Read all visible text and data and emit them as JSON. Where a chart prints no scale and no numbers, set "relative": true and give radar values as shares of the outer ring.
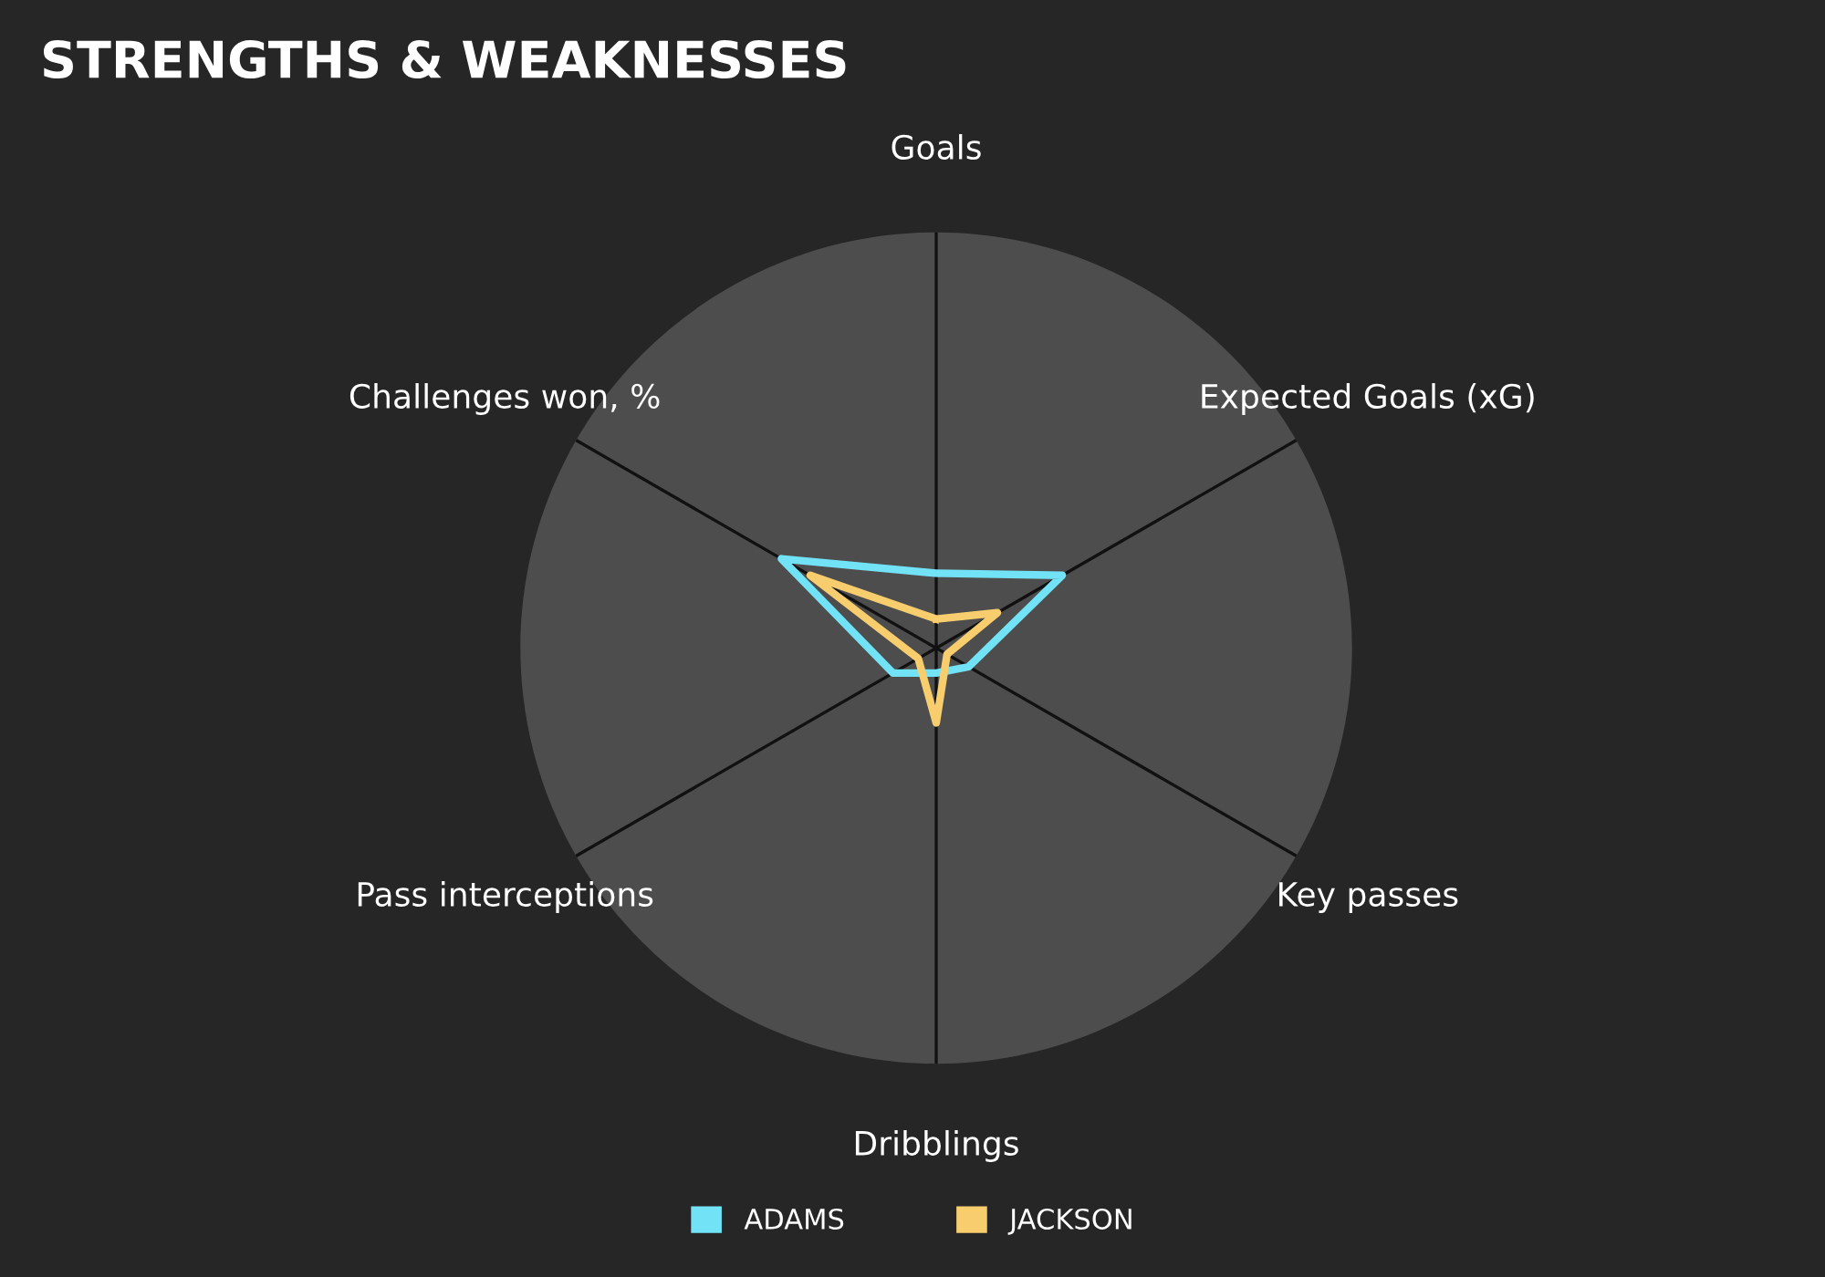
{
  "chart_data": {
    "type": "radar",
    "title": "STRENGTHS & WEAKNESSES",
    "categories": [
      "Goals",
      "Expected Goals (xG)",
      "Key passes",
      "Dribblings",
      "Pass interceptions",
      "Challenges won, %"
    ],
    "relative": true,
    "grid": "x",
    "legend": "bottom",
    "marker": "none",
    "line_style": "solid",
    "series": [
      {
        "name": "ADAMS",
        "color": "#72e3f7",
        "values": [
          0.18,
          0.35,
          0.09,
          0.06,
          0.12,
          0.43
        ]
      },
      {
        "name": "JACKSON",
        "color": "#f7cd6e",
        "values": [
          0.07,
          0.17,
          0.03,
          0.18,
          0.05,
          0.35
        ]
      }
    ]
  }
}
